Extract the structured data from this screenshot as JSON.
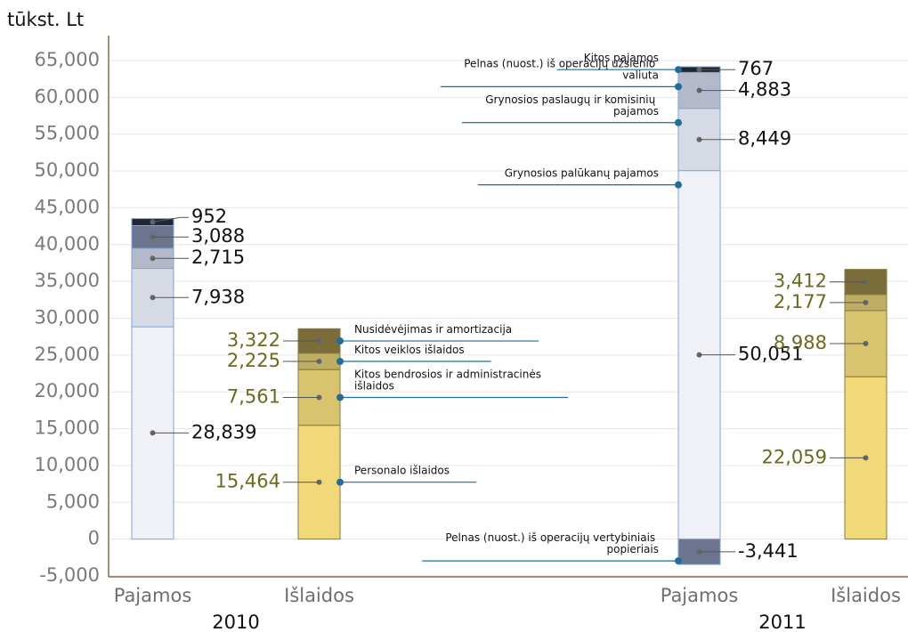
{
  "chart_data": {
    "type": "stacked_bar",
    "y_label": "tūkst. Lt",
    "groups": [
      "2010",
      "2011"
    ],
    "ylim": [
      -5000,
      65000
    ],
    "yticks": [
      {
        "value": -5000,
        "label": "-5,000"
      },
      0,
      {
        "value": 5000,
        "label": "5,000"
      },
      {
        "value": 10000,
        "label": "10,000"
      },
      {
        "value": 15000,
        "label": "15,000"
      },
      {
        "value": 20000,
        "label": "20,000"
      },
      {
        "value": 25000,
        "label": "25,000"
      },
      {
        "value": 30000,
        "label": "30,000"
      },
      {
        "value": 35000,
        "label": "35,000"
      },
      {
        "value": 40000,
        "label": "40,000"
      },
      {
        "value": 45000,
        "label": "45,000"
      },
      {
        "value": 50000,
        "label": "50,000"
      },
      {
        "value": 55000,
        "label": "55,000"
      },
      {
        "value": 60000,
        "label": "60,000"
      },
      {
        "value": 65000,
        "label": "65,000"
      }
    ],
    "grid": true,
    "bars": [
      {
        "category": "Pajamos",
        "border": "#7fa6d6",
        "label_color": "#111111",
        "series": [
          {
            "name": "Grynosios palūkanų pajamos",
            "color": "#eff1f6",
            "values": [
              28839,
              50051
            ],
            "value_labels": [
              "28,839",
              "50,051"
            ]
          },
          {
            "name": "Grynosios paslaugų ir komisinių pajamos",
            "color": "#d6dae4",
            "values": [
              7938,
              8449
            ],
            "value_labels": [
              "7,938",
              "8,449"
            ]
          },
          {
            "name": "Pelnas (nuost.) iš operacijų užsienio valiuta",
            "color": "#b3b9ca",
            "values": [
              2715,
              4883
            ],
            "value_labels": [
              "2,715",
              "4,883"
            ]
          },
          {
            "name": "Pelnas (nuost.) iš operacijų vertybiniais popieriais",
            "color": "#6d7490",
            "values": [
              3088,
              -3441
            ],
            "value_labels": [
              "3,088",
              "-3,441"
            ]
          },
          {
            "name": "Kitos pajamos",
            "color": "#1e2736",
            "values": [
              952,
              767
            ],
            "value_labels": [
              "952",
              "767"
            ]
          }
        ]
      },
      {
        "category": "Išlaidos",
        "border": "#8a7a3c",
        "label_color": "#6b6a1e",
        "series": [
          {
            "name": "Personalo išlaidos",
            "color": "#f1d97a",
            "values": [
              15464,
              22059
            ],
            "value_labels": [
              "15,464",
              "22,059"
            ]
          },
          {
            "name": "Kitos bendrosios ir administracinės išlaidos",
            "color": "#d8c46f",
            "values": [
              7561,
              8988
            ],
            "value_labels": [
              "7,561",
              "8,988"
            ]
          },
          {
            "name": "Kitos veiklos išlaidos",
            "color": "#bdae63",
            "values": [
              2225,
              2177
            ],
            "value_labels": [
              "2,225",
              "2,177"
            ]
          },
          {
            "name": "Nusidėvėjimas ir amortizacija",
            "color": "#7b6d3a",
            "values": [
              3322,
              3412
            ],
            "value_labels": [
              "3,322",
              "3,412"
            ]
          }
        ]
      }
    ]
  }
}
